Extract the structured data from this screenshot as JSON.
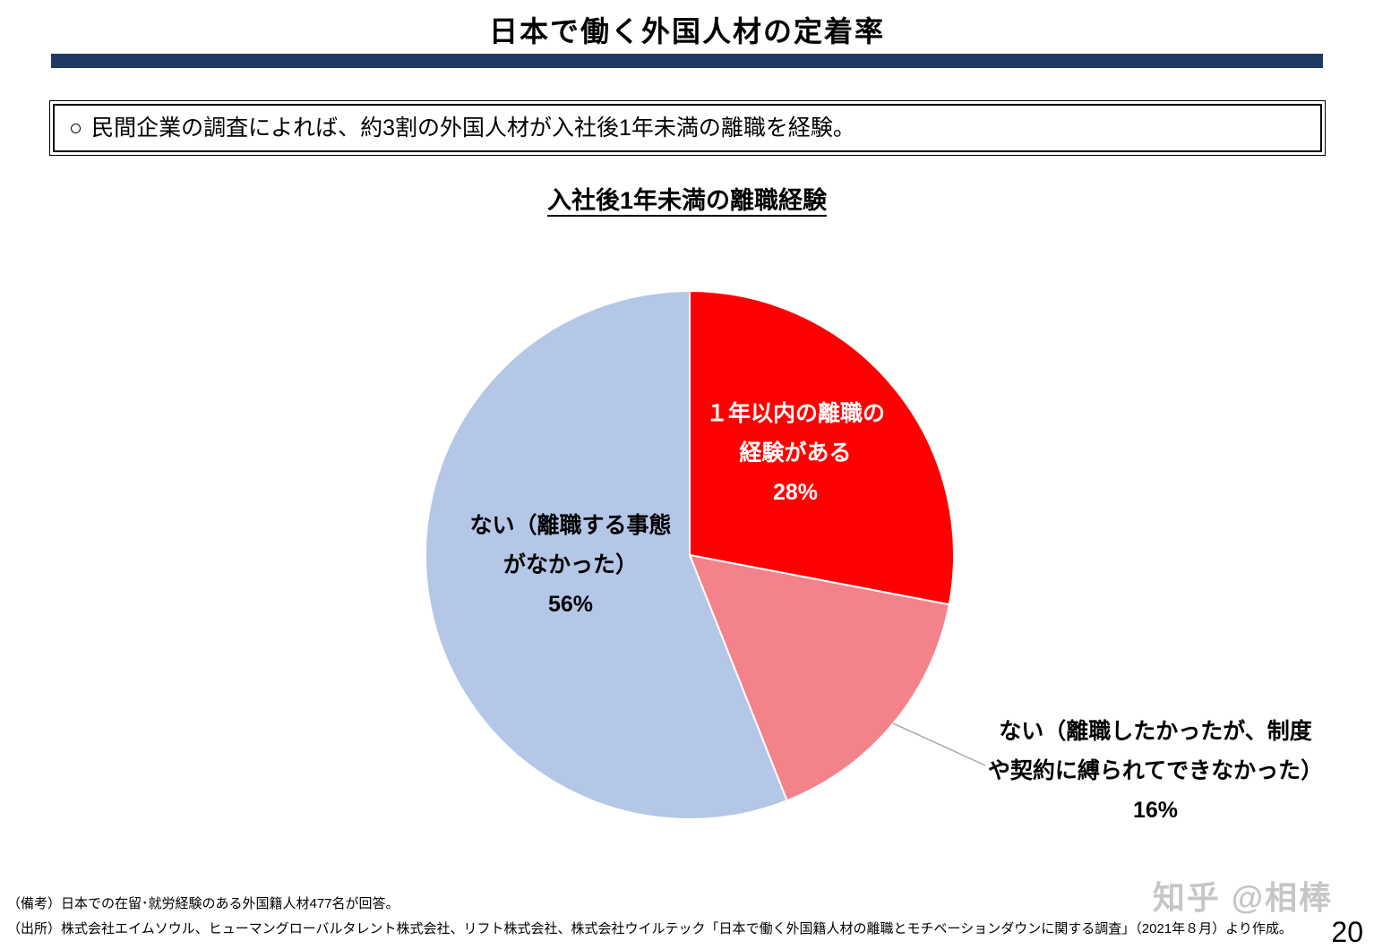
{
  "page": {
    "title": "日本で働く外国人材の定着率",
    "title_bar_color": "#1F3864",
    "page_number": "20",
    "watermark": "知乎 @相棒"
  },
  "statement": {
    "marker": "○",
    "text": "民間企業の調査によれば、約3割の外国人材が入社後1年未満の離職を経験。"
  },
  "chart_data": {
    "type": "pie",
    "title": "入社後1年未満の離職経験",
    "start_angle_deg": 0,
    "direction": "clockwise",
    "unit": "%",
    "slices": [
      {
        "name": "1年以内の離職の経験がある",
        "value_pct": 28,
        "color": "#FF0000",
        "label_lines": [
          "１年以内の離職の",
          "経験がある",
          "28%"
        ],
        "label_placement": "inside",
        "label_color": "#FFFFFF"
      },
      {
        "name": "ない（離職したかったが、制度や契約に縛られてできなかった）",
        "value_pct": 16,
        "color": "#F4828B",
        "label_lines": [
          "ない（離職したかったが、制度",
          "や契約に縛られてできなかった）",
          "16%"
        ],
        "label_placement": "outside",
        "label_color": "#000000"
      },
      {
        "name": "ない（離職する事態がなかった）",
        "value_pct": 56,
        "color": "#B4C7E7",
        "label_lines": [
          "ない（離職する事態",
          "がなかった）",
          "56%"
        ],
        "label_placement": "inside",
        "label_color": "#000000"
      }
    ],
    "leader_line_color": "#A6A6A6"
  },
  "notes": {
    "remark": "（備考）日本での在留･就労経験のある外国籍人材477名が回答。",
    "source": "（出所）株式会社エイムソウル、ヒューマングローバルタレント株式会社、リフト株式会社、株式会社ウイルテック「日本で働く外国籍人材の離職とモチベーションダウンに関する調査」（2021年８月）より作成。"
  }
}
